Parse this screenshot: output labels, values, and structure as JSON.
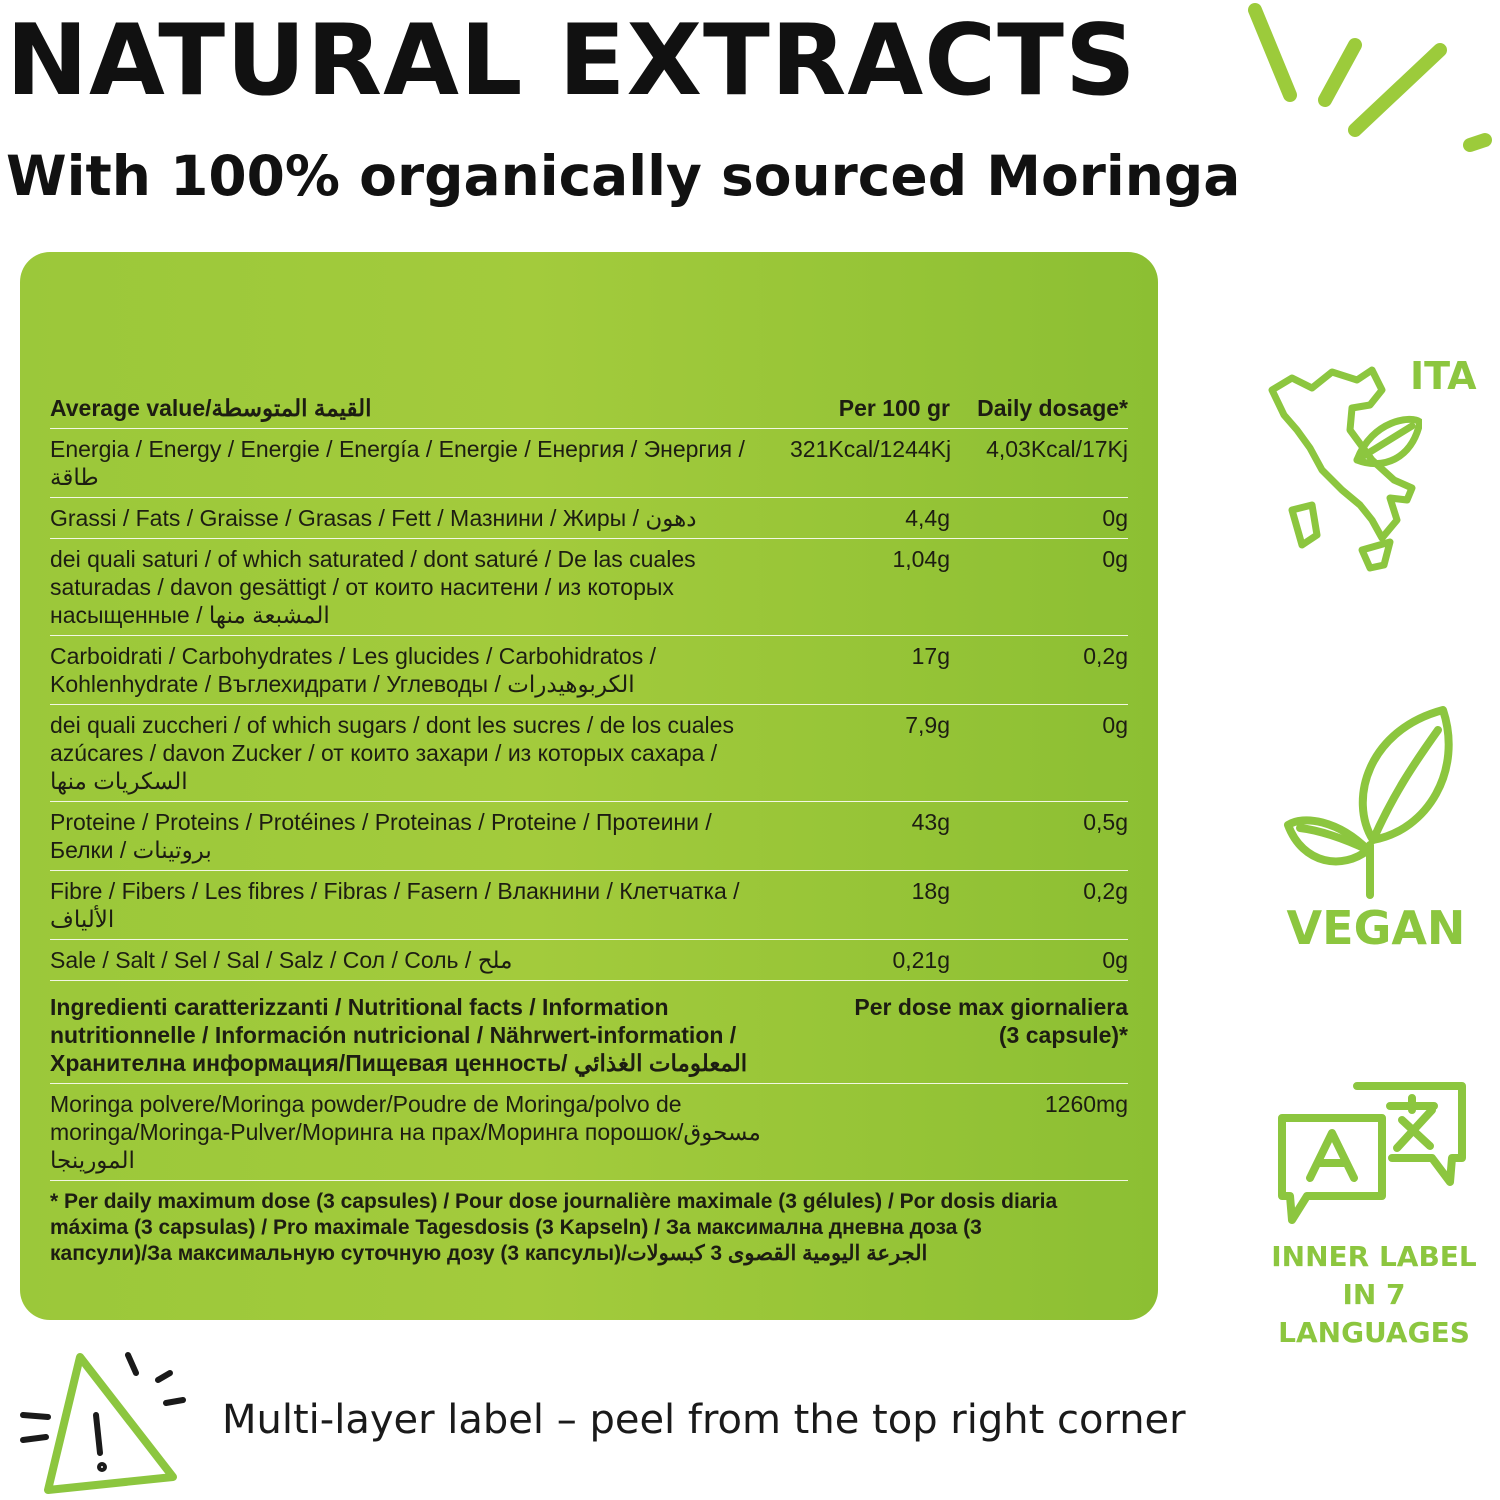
{
  "header": {
    "title": "NATURAL EXTRACTS",
    "subtitle": "With 100% organically sourced Moringa"
  },
  "table": {
    "head": {
      "label": "Average value/القيمة المتوسطة",
      "col1": "Per 100 gr",
      "col2": "Daily dosage*"
    },
    "rows": [
      {
        "label": "Energia / Energy / Energie / Energía / Energie / Енергия / Энергия / طاقة",
        "v1": "321Kcal/1244Kj",
        "v2": "4,03Kcal/17Kj"
      },
      {
        "label": "Grassi / Fats / Graisse / Grasas / Fett / Мазнини / Жиры / دهون",
        "v1": "4,4g",
        "v2": "0g"
      },
      {
        "label": "dei quali saturi / of which saturated / dont saturé / De las cuales saturadas / davon gesättigt / от които наситени / из которых насыщенные / المشبعة منها",
        "v1": "1,04g",
        "v2": "0g"
      },
      {
        "label": "Carboidrati / Carbohydrates / Les glucides / Carbohidratos / Kohlenhydrate / Въглехидрати / Углеводы / الكربوهيدرات",
        "v1": "17g",
        "v2": "0,2g"
      },
      {
        "label": "dei quali zuccheri / of which sugars / dont les sucres / de los cuales azúcares / davon Zucker / от които захари / из которых сахара / السكريات منها",
        "v1": "7,9g",
        "v2": "0g"
      },
      {
        "label": "Proteine / Proteins / Protéines / Proteinas / Proteine / Протеини / Белки / بروتينات",
        "v1": "43g",
        "v2": "0,5g"
      },
      {
        "label": "Fibre / Fibers / Les fibres / Fibras / Fasern / Влакнини / Клетчатка / الألياف",
        "v1": "18g",
        "v2": "0,2g"
      },
      {
        "label": "Sale / Salt / Sel / Sal / Salz / Сол / Соль / ملح",
        "v1": "0,21g",
        "v2": "0g"
      }
    ],
    "ingredients_head": {
      "label": "Ingredienti caratterizzanti / Nutritional facts / Information nutritionnelle / Información nutricional / Nährwert-information / Хранителна информация/Пищевая ценность/ المعلومات الغذائي",
      "col": "Per dose max giornaliera (3 capsule)*"
    },
    "moringa": {
      "label": "Moringa polvere/Moringa powder/Poudre de Moringa/polvo de moringa/Moringa-Pulver/Моринга на прах/Моринга порошок/مسحوق المورينجا",
      "value": "1260mg"
    },
    "footnote": "* Per daily maximum dose (3 capsules) / Pour dose journalière maximale (3 gélules) / Por dosis diaria máxima (3 capsulas) / Pro maximale Tagesdosis (3 Kapseln) / За максимална дневна доза (3 капсули)/За максимальную суточную дозу (3 капсулы)/الجرعة اليومية القصوى 3 كبسولات"
  },
  "badges": [
    {
      "icon": "italy-leaf-icon",
      "label": "ITA"
    },
    {
      "icon": "vegan-leaf-icon",
      "label": "VEGAN"
    },
    {
      "icon": "languages-icon",
      "label": "INNER LABEL IN 7 LANGUAGES"
    }
  ],
  "warning": {
    "icon": "warning-triangle-icon",
    "text": "Multi-layer label – peel from the top right corner"
  },
  "colors": {
    "accent": "#8cc63f",
    "panel": "#9bc83a",
    "text": "#141414"
  }
}
